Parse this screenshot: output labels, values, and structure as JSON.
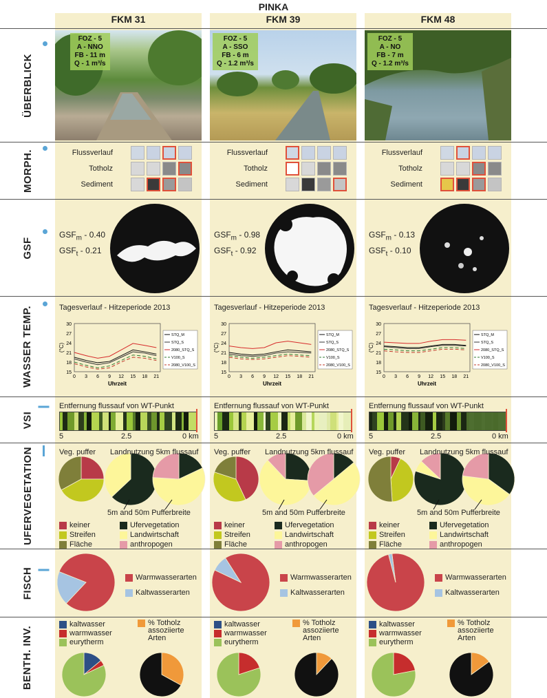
{
  "title": "PINKA",
  "columns": [
    {
      "name": "FKM 31",
      "foz": "FOZ - 5",
      "a": "A - NNO",
      "fb": "FB - 11 m",
      "q": "Q - 1 m³/s",
      "gsf_m": "0.40",
      "gsf_t": "0.21",
      "morph": {
        "flussverlauf": 2,
        "totholz": 3,
        "sediment": [
          1,
          2
        ]
      }
    },
    {
      "name": "FKM 39",
      "foz": "FOZ - 5",
      "a": "A - SSO",
      "fb": "FB - 6 m",
      "q": "Q - 1.2 m³/s",
      "gsf_m": "0.98",
      "gsf_t": "0.92",
      "morph": {
        "flussverlauf": 0,
        "totholz": 0,
        "sediment": [
          3
        ]
      }
    },
    {
      "name": "FKM 48",
      "foz": "FOZ - 5",
      "a": "A - NO",
      "fb": "FB - 7 m",
      "q": "Q - 1.2 m³/s",
      "gsf_m": "0.13",
      "gsf_t": "0.10",
      "morph": {
        "flussverlauf": 1,
        "totholz": 2,
        "sediment": [
          0,
          1,
          2
        ]
      }
    }
  ],
  "rows": {
    "overview": "ÜBERBLICK",
    "morph": "MORPH.",
    "gsf": "GSF",
    "temp": "WASSER TEMP.",
    "vsi": "VSI",
    "ufer": "UFERVEGETATION",
    "fisch": "FISCH",
    "benth": "BENTH. INV."
  },
  "morph_labels": {
    "flussverlauf": "Flussverlauf",
    "totholz": "Totholz",
    "sediment": "Sediment"
  },
  "gsf_labels": {
    "m": "GSF",
    "m_sub": "m",
    "t": "GSF",
    "t_sub": "t",
    "sep": "-"
  },
  "temp": {
    "title": "Tagesverlauf - Hitzeperiode 2013",
    "xlabel": "Uhrzeit",
    "ylabel": "(°C)",
    "yticks": [
      "30",
      "27",
      "24",
      "21",
      "18",
      "15"
    ],
    "xticks": [
      "0",
      "3",
      "6",
      "9",
      "12",
      "15",
      "18",
      "21"
    ],
    "legend": [
      "STQ_M",
      "STQ_S",
      "2080_STQ_S",
      "V100_S",
      "2080_V100_S"
    ]
  },
  "vsi": {
    "title": "Entfernung flussauf von WT-Punkt",
    "ticks": [
      "5",
      "2.5",
      "0 km"
    ]
  },
  "ufer": {
    "veg_title": "Veg. puffer",
    "land_title": "Landnutzung 5km flussauf",
    "buffer_note": "5m and 50m Pufferbreite",
    "legend_left": [
      "keiner",
      "Streifen",
      "Fläche"
    ],
    "legend_right": [
      "Ufervegetation",
      "Landwirtschaft",
      "anthropogen"
    ]
  },
  "fisch": {
    "legend": [
      "Warmwasserarten",
      "Kaltwasserarten"
    ]
  },
  "benth": {
    "legend": [
      "kaltwasser",
      "warmwasser",
      "eurytherm"
    ],
    "totholz": "% Totholz assoziierte Arten"
  },
  "colors": {
    "accent": "#5aa5d6",
    "panel": "#f6efcc",
    "selected": "#e0503a",
    "keiner": "#b83a48",
    "streifen": "#c2c81f",
    "flaeche": "#7f7f3a",
    "ufervegetation": "#1a2a1e",
    "landwirtschaft": "#fdf69a",
    "anthropogen": "#e59aa7",
    "warm": "#c9444a",
    "kalt": "#a6c4e2",
    "kaltwasser": "#2d4f86",
    "warmwasser": "#c62d2d",
    "eurytherm": "#9bc25a",
    "totholz": "#f0993a",
    "black": "#111111"
  },
  "chart_data": [
    {
      "type": "pie",
      "name": "FKM 31 Veg. puffer",
      "categories": [
        "keiner",
        "Streifen",
        "Fläche"
      ],
      "values": [
        25,
        42,
        33
      ]
    },
    {
      "type": "pie",
      "name": "FKM 31 Landnutzung 5m",
      "categories": [
        "Ufervegetation",
        "Landwirtschaft",
        "anthropogen"
      ],
      "values": [
        63,
        37,
        0
      ]
    },
    {
      "type": "pie",
      "name": "FKM 31 Landnutzung 50m",
      "categories": [
        "Ufervegetation",
        "Landwirtschaft",
        "anthropogen"
      ],
      "values": [
        18,
        58,
        24
      ]
    },
    {
      "type": "pie",
      "name": "FKM 39 Veg. puffer",
      "categories": [
        "keiner",
        "Streifen",
        "Fläche"
      ],
      "values": [
        43,
        37,
        20
      ]
    },
    {
      "type": "pie",
      "name": "FKM 39 Landnutzung 5m",
      "categories": [
        "Ufervegetation",
        "Landwirtschaft",
        "anthropogen"
      ],
      "values": [
        26,
        62,
        12
      ]
    },
    {
      "type": "pie",
      "name": "FKM 39 Landnutzung 50m",
      "categories": [
        "Ufervegetation",
        "Landwirtschaft",
        "anthropogen"
      ],
      "values": [
        14,
        50,
        36
      ]
    },
    {
      "type": "pie",
      "name": "FKM 48 Veg. puffer",
      "categories": [
        "keiner",
        "Streifen",
        "Fläche"
      ],
      "values": [
        7,
        42,
        51
      ]
    },
    {
      "type": "pie",
      "name": "FKM 48 Landnutzung 5m",
      "categories": [
        "Ufervegetation",
        "Landwirtschaft",
        "anthropogen"
      ],
      "values": [
        80,
        7,
        13
      ]
    },
    {
      "type": "pie",
      "name": "FKM 48 Landnutzung 50m",
      "categories": [
        "Ufervegetation",
        "Landwirtschaft",
        "anthropogen"
      ],
      "values": [
        35,
        42,
        23
      ]
    },
    {
      "type": "pie",
      "name": "FKM 31 Fisch",
      "categories": [
        "Warmwasserarten",
        "Kaltwasserarten"
      ],
      "values": [
        81,
        19
      ]
    },
    {
      "type": "pie",
      "name": "FKM 39 Fisch",
      "categories": [
        "Warmwasserarten",
        "Kaltwasserarten"
      ],
      "values": [
        91,
        9
      ]
    },
    {
      "type": "pie",
      "name": "FKM 48 Fisch",
      "categories": [
        "Warmwasserarten",
        "Kaltwasserarten"
      ],
      "values": [
        98,
        2
      ]
    },
    {
      "type": "pie",
      "name": "FKM 31 Benth.",
      "categories": [
        "kaltwasser",
        "warmwasser",
        "eurytherm"
      ],
      "values": [
        14,
        4,
        82
      ]
    },
    {
      "type": "pie",
      "name": "FKM 39 Benth.",
      "categories": [
        "kaltwasser",
        "warmwasser",
        "eurytherm"
      ],
      "values": [
        0,
        20,
        80
      ]
    },
    {
      "type": "pie",
      "name": "FKM 48 Benth.",
      "categories": [
        "kaltwasser",
        "warmwasser",
        "eurytherm"
      ],
      "values": [
        0,
        22,
        78
      ]
    },
    {
      "type": "pie",
      "name": "FKM 31 Totholz",
      "categories": [
        "% Totholz assoziierte Arten",
        "other"
      ],
      "values": [
        33,
        67
      ]
    },
    {
      "type": "pie",
      "name": "FKM 39 Totholz",
      "categories": [
        "% Totholz assoziierte Arten",
        "other"
      ],
      "values": [
        12,
        88
      ]
    },
    {
      "type": "pie",
      "name": "FKM 48 Totholz",
      "categories": [
        "% Totholz assoziierte Arten",
        "other"
      ],
      "values": [
        15,
        85
      ]
    },
    {
      "type": "line",
      "name": "FKM 31 Temp",
      "x": [
        0,
        3,
        6,
        9,
        12,
        15,
        18,
        21
      ],
      "ylim": [
        15,
        30
      ],
      "series": [
        {
          "name": "STQ_M",
          "values": [
            19.5,
            18.5,
            17.8,
            18.2,
            20,
            21.8,
            21.2,
            20.5
          ]
        },
        {
          "name": "STQ_S",
          "values": [
            19,
            18,
            17.2,
            17.8,
            19.5,
            21.2,
            20.8,
            20
          ]
        },
        {
          "name": "2080_STQ_S",
          "values": [
            21,
            20,
            19.2,
            19.8,
            21.8,
            23.8,
            23.2,
            22.5
          ]
        },
        {
          "name": "V100_S",
          "values": [
            18,
            17,
            16.2,
            16.8,
            18.5,
            20.2,
            19.8,
            19
          ]
        },
        {
          "name": "2080_V100_S",
          "values": [
            17.5,
            16.5,
            15.8,
            16.2,
            18,
            19.5,
            19.2,
            18.5
          ]
        }
      ]
    },
    {
      "type": "line",
      "name": "FKM 39 Temp",
      "x": [
        0,
        3,
        6,
        9,
        12,
        15,
        18,
        21
      ],
      "ylim": [
        15,
        30
      ],
      "series": [
        {
          "name": "STQ_M",
          "values": [
            21,
            20.5,
            20.2,
            20.5,
            21.2,
            21.8,
            21.5,
            21.2
          ]
        },
        {
          "name": "STQ_S",
          "values": [
            20.5,
            20,
            19.8,
            20,
            20.8,
            21.2,
            21,
            20.8
          ]
        },
        {
          "name": "2080_STQ_S",
          "values": [
            23,
            22.5,
            22.2,
            22.5,
            24,
            24.5,
            24,
            23.5
          ]
        },
        {
          "name": "V100_S",
          "values": [
            20,
            19.5,
            19.2,
            19.5,
            20,
            20.5,
            20.2,
            20
          ]
        },
        {
          "name": "2080_V100_S",
          "values": [
            19.5,
            19,
            18.8,
            19,
            19.5,
            20,
            19.8,
            19.5
          ]
        }
      ]
    },
    {
      "type": "line",
      "name": "FKM 48 Temp",
      "x": [
        0,
        3,
        6,
        9,
        12,
        15,
        18,
        21
      ],
      "ylim": [
        15,
        30
      ],
      "series": [
        {
          "name": "STQ_M",
          "values": [
            23,
            22.8,
            22.5,
            22.5,
            23,
            23.5,
            23.5,
            23.2
          ]
        },
        {
          "name": "STQ_S",
          "values": [
            22.8,
            22.5,
            22.2,
            22.2,
            22.8,
            23.2,
            23.2,
            23
          ]
        },
        {
          "name": "2080_STQ_S",
          "values": [
            24.2,
            24,
            23.8,
            23.8,
            24.5,
            25,
            25,
            24.8
          ]
        },
        {
          "name": "V100_S",
          "values": [
            22,
            21.8,
            21.5,
            21.5,
            22,
            22.5,
            22.5,
            22.2
          ]
        },
        {
          "name": "2080_V100_S",
          "values": [
            21.5,
            21.2,
            21,
            21,
            21.5,
            22,
            22,
            21.8
          ]
        }
      ]
    }
  ]
}
